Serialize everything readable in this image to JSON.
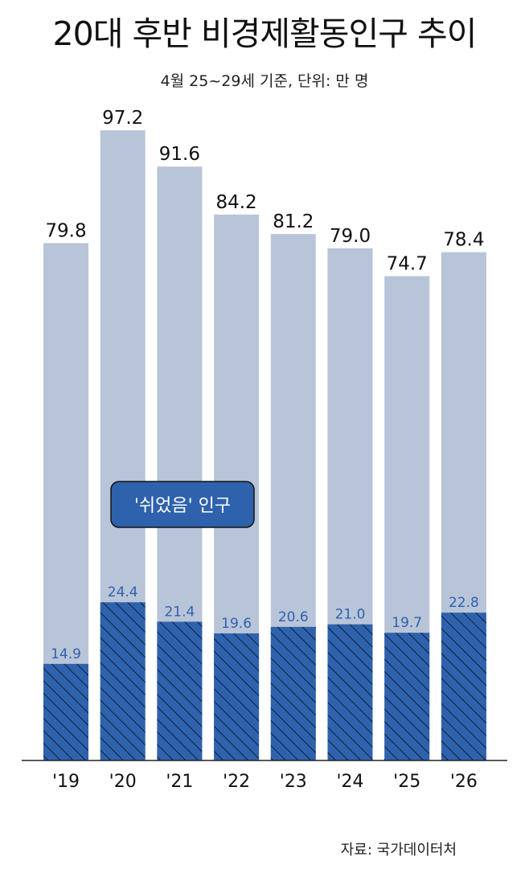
{
  "title": "20대 후반 비경제활동인구 추이",
  "subtitle": "4월 25~29세 기준, 단위: 만 명",
  "source": "자료: 국가데이터처",
  "chart_data": {
    "type": "bar",
    "categories": [
      "'19",
      "'20",
      "'21",
      "'22",
      "'23",
      "'24",
      "'25",
      "'26"
    ],
    "series": [
      {
        "values": [
          79.8,
          97.2,
          91.6,
          84.2,
          81.2,
          79.0,
          74.7,
          78.4
        ],
        "labels": [
          "79.8",
          "97.2",
          "91.6",
          "84.2",
          "81.2",
          "79.0",
          "74.7",
          "78.4"
        ],
        "color": "#b8c4d8"
      },
      {
        "name": "'쉬었음' 인구",
        "values": [
          14.9,
          24.4,
          21.4,
          19.6,
          20.6,
          21.0,
          19.7,
          22.8
        ],
        "labels": [
          "14.9",
          "24.4",
          "21.4",
          "19.6",
          "20.6",
          "21.0",
          "19.7",
          "22.8"
        ],
        "color": "#2f62ad",
        "pattern": "hatched"
      }
    ],
    "ylim": [
      0,
      100
    ],
    "grid": false,
    "callout": "'쉬었음' 인구"
  }
}
